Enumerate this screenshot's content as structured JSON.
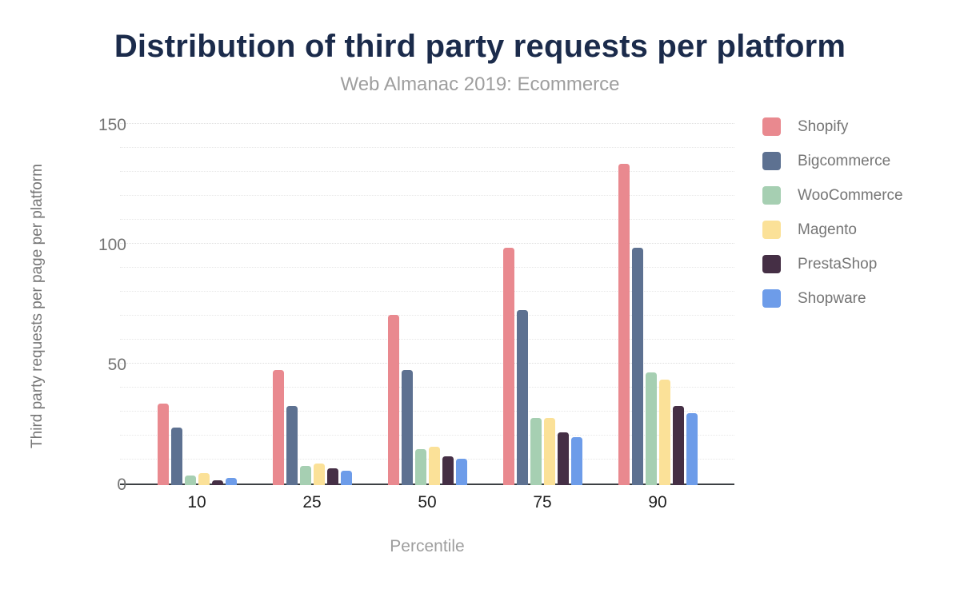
{
  "chart_data": {
    "type": "bar",
    "title": "Distribution of third party requests per platform",
    "subtitle": "Web Almanac 2019: Ecommerce",
    "xlabel": "Percentile",
    "ylabel": "Third party requests per page per platform",
    "categories": [
      "10",
      "25",
      "50",
      "75",
      "90"
    ],
    "series": [
      {
        "name": "Shopify",
        "color": "#e9898f",
        "values": [
          34,
          48,
          71,
          99,
          134
        ]
      },
      {
        "name": "Bigcommerce",
        "color": "#5d7191",
        "values": [
          24,
          33,
          48,
          73,
          99
        ]
      },
      {
        "name": "WooCommerce",
        "color": "#a6cfb2",
        "values": [
          4,
          8,
          15,
          28,
          47
        ]
      },
      {
        "name": "Magento",
        "color": "#fbe198",
        "values": [
          5,
          9,
          16,
          28,
          44
        ]
      },
      {
        "name": "PrestaShop",
        "color": "#452f45",
        "values": [
          2,
          7,
          12,
          22,
          33
        ]
      },
      {
        "name": "Shopware",
        "color": "#6d9ce9",
        "values": [
          3,
          6,
          11,
          20,
          30
        ]
      }
    ],
    "ylim": [
      0,
      150
    ],
    "yticks": [
      0,
      50,
      100,
      150
    ],
    "grid_step": 10,
    "ytick_step": 50,
    "grid": true,
    "legend_position": "right",
    "colors": {
      "title": "#1b2b4b",
      "subtitle": "#9e9e9e",
      "axis_line": "#3c4043",
      "gridline": "#e7e7e7",
      "y_tick_text": "#757575",
      "x_tick_text": "#212121",
      "legend_text": "#757575"
    }
  }
}
